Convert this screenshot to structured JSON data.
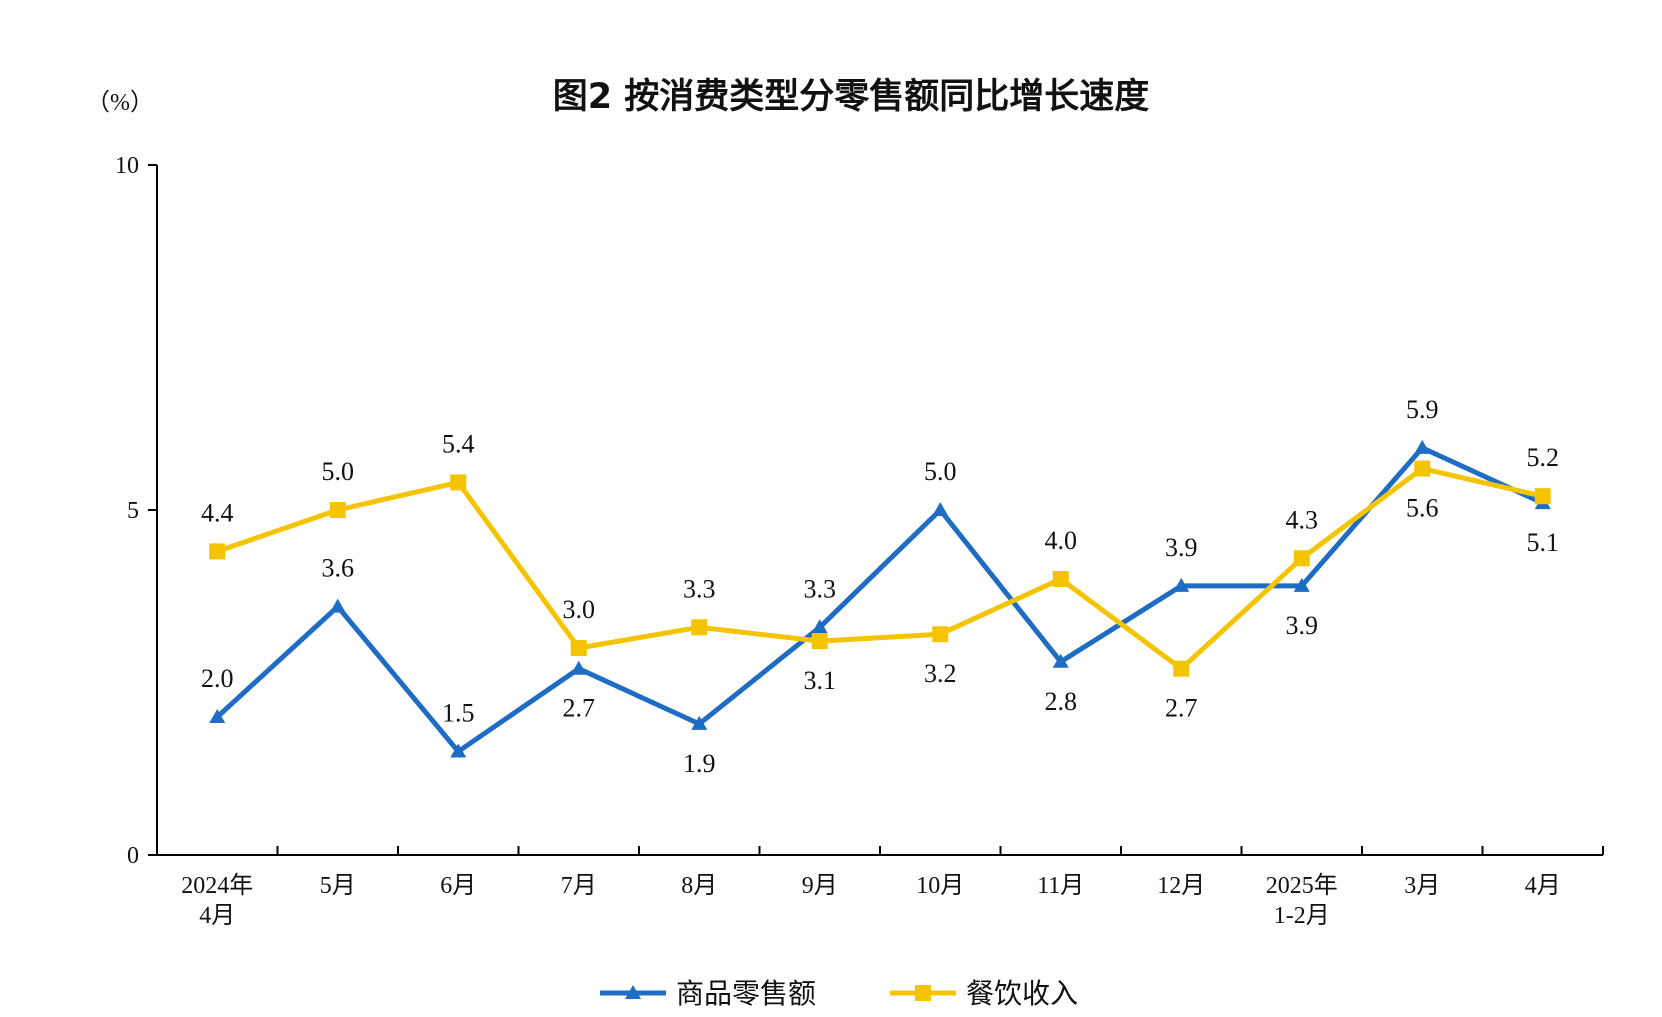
{
  "chart_data": {
    "type": "line",
    "title": "图2  按消费类型分零售额同比增长速度",
    "unit_label": "（%）",
    "ylim": [
      0,
      10
    ],
    "yticks": [
      "0",
      "5",
      "10"
    ],
    "categories": [
      [
        "2024年",
        "4月"
      ],
      [
        "5月"
      ],
      [
        "6月"
      ],
      [
        "7月"
      ],
      [
        "8月"
      ],
      [
        "9月"
      ],
      [
        "10月"
      ],
      [
        "11月"
      ],
      [
        "12月"
      ],
      [
        "2025年",
        "1-2月"
      ],
      [
        "3月"
      ],
      [
        "4月"
      ]
    ],
    "series": [
      {
        "name": "商品零售额",
        "color": "#1f6cc4",
        "marker": "triangle",
        "values": [
          2.0,
          3.6,
          1.5,
          2.7,
          1.9,
          3.3,
          5.0,
          2.8,
          3.9,
          3.9,
          5.9,
          5.1
        ],
        "labels": [
          "2.0",
          "3.6",
          "1.5",
          "2.7",
          "1.9",
          "3.3",
          "5.0",
          "2.8",
          "3.9",
          "3.9",
          "5.9",
          "5.1"
        ],
        "label_pos": [
          "above",
          "above",
          "above",
          "below",
          "below",
          "above",
          "above",
          "below",
          "above",
          "below",
          "above",
          "below"
        ]
      },
      {
        "name": "餐饮收入",
        "color": "#f5c400",
        "marker": "square",
        "values": [
          4.4,
          5.0,
          5.4,
          3.0,
          3.3,
          3.1,
          3.2,
          4.0,
          2.7,
          4.3,
          5.6,
          5.2
        ],
        "labels": [
          "4.4",
          "5.0",
          "5.4",
          "3.0",
          "3.3",
          "3.1",
          "3.2",
          "4.0",
          "2.7",
          "4.3",
          "5.6",
          "5.2"
        ],
        "label_pos": [
          "above",
          "above",
          "above",
          "above",
          "above",
          "below",
          "below",
          "above",
          "below",
          "above",
          "below",
          "above"
        ]
      }
    ],
    "grid": false,
    "legend_position": "bottom-center"
  }
}
